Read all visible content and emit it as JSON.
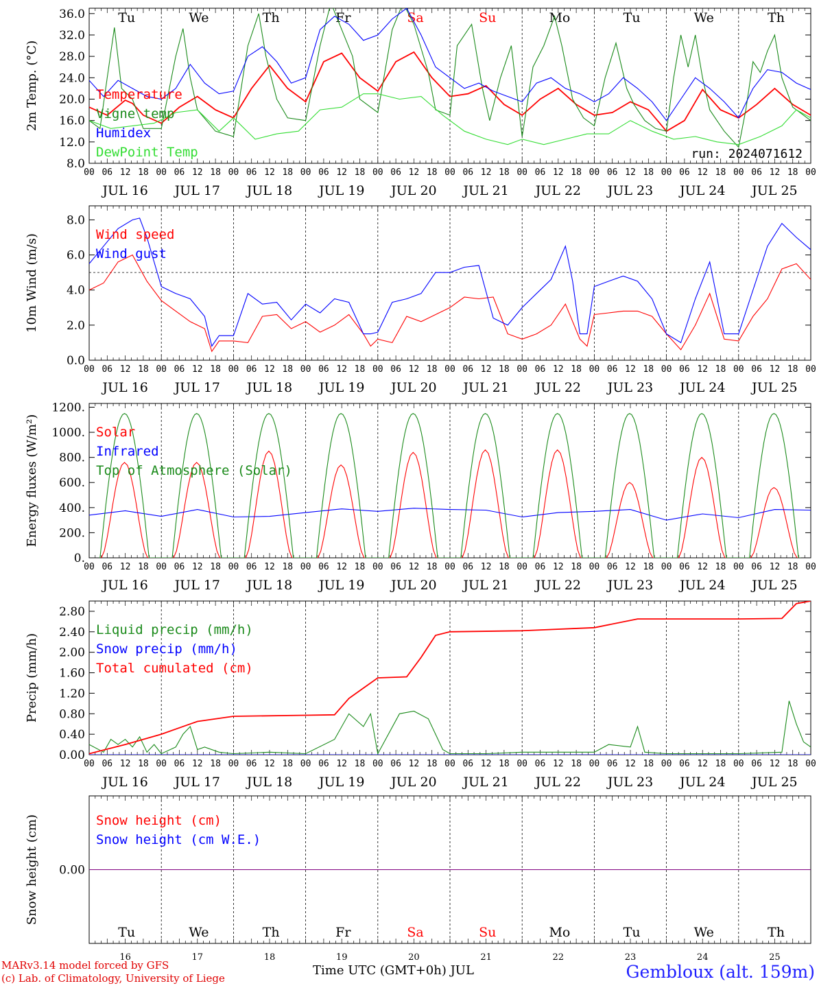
{
  "page": {
    "footer_model": "MARv3.14 model forced by GFS",
    "footer_lab": "(c) Lab. of Climatology, University of Liege",
    "time_label": "Time UTC (GMT+0h) JUL",
    "station": "Gembloux (alt. 159m)"
  },
  "days": [
    "Tu",
    "We",
    "Th",
    "Fr",
    "Sa",
    "Su",
    "Mo",
    "Tu",
    "We",
    "Th"
  ],
  "weekend_days": [
    "Sa",
    "Su"
  ],
  "dates": [
    "JUL 16",
    "JUL 17",
    "JUL 18",
    "JUL 19",
    "JUL 20",
    "JUL 21",
    "JUL 22",
    "JUL 23",
    "JUL 24",
    "JUL 25"
  ],
  "day_numbers": [
    "16",
    "17",
    "18",
    "19",
    "20",
    "21",
    "22",
    "23",
    "24",
    "25"
  ],
  "hour_ticks": [
    "00",
    "06",
    "12",
    "18"
  ],
  "colors": {
    "red": "#ff0000",
    "green": "#1a8a1a",
    "blue": "#0000ff",
    "lightgreen": "#33dd33",
    "purple": "#800080",
    "weekend": "#ff0000"
  },
  "chart_data": [
    {
      "type": "line",
      "ylabel": "2m Temp. (°C)",
      "ylim": [
        8,
        37
      ],
      "yticks": [
        "8.0",
        "12.0",
        "16.0",
        "20.0",
        "24.0",
        "28.0",
        "32.0",
        "36.0"
      ],
      "annotation": "run: 2024071612",
      "x_unit": "days since JUL 16 00 UTC",
      "series": [
        {
          "name": "Temperature",
          "color": "red",
          "x": [
            0,
            0.25,
            0.5,
            0.6,
            0.75,
            1,
            1.25,
            1.5,
            1.75,
            2,
            2.25,
            2.5,
            2.75,
            3,
            3.25,
            3.5,
            3.75,
            4,
            4.25,
            4.5,
            4.75,
            5,
            5.25,
            5.5,
            5.75,
            6,
            6.25,
            6.5,
            6.75,
            7,
            7.25,
            7.5,
            7.75,
            8,
            8.25,
            8.5,
            8.75,
            9,
            9.25,
            9.5,
            9.75,
            10
          ],
          "y": [
            18.5,
            17,
            19.8,
            19.2,
            17,
            15.5,
            18.5,
            20.5,
            18,
            16.5,
            22,
            26.3,
            22,
            19.5,
            27,
            28.6,
            24,
            21.5,
            27,
            28.8,
            24,
            20.5,
            21,
            22.5,
            19,
            17,
            20,
            22,
            19,
            17,
            17.5,
            19.5,
            18,
            14,
            16,
            21.8,
            18,
            16.5,
            19,
            22,
            19,
            17
          ]
        },
        {
          "name": "Vigne temp",
          "color": "green",
          "x": [
            0,
            0.15,
            0.25,
            0.35,
            0.45,
            0.6,
            0.75,
            1,
            1.2,
            1.3,
            1.4,
            1.5,
            1.75,
            2,
            2.2,
            2.35,
            2.45,
            2.6,
            2.75,
            3,
            3.2,
            3.35,
            3.5,
            3.65,
            3.75,
            4,
            4.2,
            4.35,
            4.5,
            4.7,
            4.8,
            5,
            5.1,
            5.3,
            5.45,
            5.55,
            5.7,
            5.85,
            6,
            6.15,
            6.3,
            6.45,
            6.55,
            6.7,
            6.85,
            7,
            7.15,
            7.3,
            7.45,
            7.55,
            7.7,
            7.85,
            8,
            8.1,
            8.2,
            8.3,
            8.4,
            8.5,
            8.6,
            8.7,
            8.8,
            8.9,
            9,
            9.1,
            9.2,
            9.3,
            9.4,
            9.5,
            9.6,
            9.75,
            9.9,
            10
          ],
          "y": [
            16,
            14.5,
            24,
            33.4,
            22,
            20,
            14.5,
            14.5,
            28,
            33.2,
            24,
            18,
            14,
            13,
            30,
            36,
            28,
            20,
            16.5,
            16,
            30,
            38,
            33,
            28,
            20,
            17.5,
            33,
            38,
            34,
            25,
            18,
            17,
            30,
            34,
            22,
            16,
            24,
            30,
            13,
            26,
            30,
            35.5,
            30,
            20,
            16.5,
            15,
            24,
            30.5,
            22,
            19,
            16,
            14.5,
            14,
            24,
            32,
            26,
            32,
            24,
            18,
            16,
            14,
            12.5,
            11,
            18,
            27,
            25,
            29,
            32,
            24,
            18.5,
            17,
            16
          ]
        },
        {
          "name": "Humidex",
          "color": "blue",
          "x": [
            0,
            0.2,
            0.4,
            0.6,
            0.8,
            1,
            1.2,
            1.4,
            1.6,
            1.8,
            2,
            2.2,
            2.4,
            2.6,
            2.8,
            3,
            3.2,
            3.4,
            3.6,
            3.8,
            4,
            4.2,
            4.4,
            4.6,
            4.8,
            5,
            5.2,
            5.4,
            5.6,
            5.8,
            6,
            6.2,
            6.4,
            6.6,
            6.8,
            7,
            7.2,
            7.4,
            7.6,
            7.8,
            8,
            8.2,
            8.4,
            8.6,
            8.8,
            9,
            9.2,
            9.4,
            9.6,
            9.8,
            10
          ],
          "y": [
            23.5,
            20.5,
            23.5,
            22,
            20.5,
            20,
            22,
            26.5,
            23,
            21,
            21.5,
            28,
            29.8,
            27,
            23,
            24,
            33,
            35.5,
            34,
            31,
            32,
            35,
            37,
            32,
            26,
            24,
            22,
            23,
            21.5,
            20.5,
            19.5,
            23,
            24,
            22,
            21,
            19.5,
            21,
            24,
            22,
            19.5,
            16,
            20,
            24,
            22,
            19.5,
            16.5,
            22,
            25.5,
            25,
            23,
            21.8
          ]
        },
        {
          "name": "DewPoint Temp",
          "color": "lightgreen",
          "x": [
            0,
            0.3,
            0.6,
            0.9,
            1.2,
            1.5,
            1.8,
            2,
            2.3,
            2.6,
            2.9,
            3.2,
            3.5,
            3.8,
            4,
            4.3,
            4.6,
            4.9,
            5.2,
            5.5,
            5.8,
            6,
            6.3,
            6.6,
            6.9,
            7.2,
            7.5,
            7.8,
            8.1,
            8.4,
            8.7,
            9,
            9.3,
            9.6,
            9.8,
            10
          ],
          "y": [
            16,
            14.5,
            15,
            15.5,
            17.5,
            18,
            14,
            16.5,
            12.5,
            13.5,
            14,
            18,
            18.5,
            21,
            21,
            20,
            20.5,
            17,
            14,
            12.5,
            11.5,
            12.5,
            11.5,
            12.5,
            13.5,
            13.5,
            16,
            14,
            12.5,
            13,
            12,
            11.5,
            13,
            15,
            18,
            16.5
          ]
        }
      ]
    },
    {
      "type": "line",
      "ylabel": "10m Wind (m/s)",
      "ylim": [
        0,
        8.8
      ],
      "yticks": [
        "0.0",
        "2.0",
        "4.0",
        "6.0",
        "8.0"
      ],
      "reference_line": 5,
      "x_unit": "days since JUL 16 00 UTC",
      "series": [
        {
          "name": "Wind speed",
          "color": "red",
          "x": [
            0,
            0.2,
            0.4,
            0.6,
            0.8,
            1,
            1.2,
            1.4,
            1.6,
            1.7,
            1.8,
            1.9,
            2,
            2.2,
            2.4,
            2.6,
            2.8,
            3,
            3.2,
            3.4,
            3.6,
            3.8,
            3.9,
            4,
            4.2,
            4.4,
            4.6,
            4.8,
            5,
            5.2,
            5.4,
            5.6,
            5.8,
            6,
            6.2,
            6.4,
            6.6,
            6.8,
            6.9,
            7,
            7.2,
            7.4,
            7.6,
            7.8,
            8,
            8.2,
            8.4,
            8.6,
            8.8,
            9,
            9.2,
            9.4,
            9.6,
            9.8,
            10
          ],
          "y": [
            4,
            4.4,
            5.6,
            6,
            4.5,
            3.4,
            2.8,
            2.2,
            1.8,
            0.5,
            1.1,
            1.1,
            1.1,
            1,
            2.5,
            2.6,
            1.8,
            2.2,
            1.6,
            2,
            2.6,
            1.5,
            0.8,
            1.2,
            1,
            2.5,
            2.2,
            2.6,
            3,
            3.6,
            3.5,
            3.6,
            1.5,
            1.2,
            1.5,
            2,
            3.2,
            1.2,
            0.8,
            2.6,
            2.7,
            2.8,
            2.8,
            2.5,
            1.5,
            0.6,
            2,
            3.8,
            1.2,
            1.1,
            2.5,
            3.5,
            5.2,
            5.5,
            4.6
          ]
        },
        {
          "name": "Wind gust",
          "color": "blue",
          "x": [
            0,
            0.2,
            0.4,
            0.6,
            0.7,
            0.8,
            1,
            1.2,
            1.4,
            1.6,
            1.7,
            1.8,
            1.9,
            2,
            2.2,
            2.4,
            2.6,
            2.8,
            3,
            3.2,
            3.4,
            3.6,
            3.8,
            3.9,
            4,
            4.2,
            4.4,
            4.6,
            4.8,
            5,
            5.2,
            5.4,
            5.6,
            5.8,
            6,
            6.2,
            6.4,
            6.6,
            6.7,
            6.8,
            6.9,
            7,
            7.2,
            7.4,
            7.6,
            7.8,
            8,
            8.2,
            8.4,
            8.6,
            8.8,
            9,
            9.2,
            9.4,
            9.6,
            9.8,
            10
          ],
          "y": [
            5.5,
            6.5,
            7.5,
            8,
            8.1,
            7,
            4.2,
            3.8,
            3.5,
            2.5,
            0.8,
            1.4,
            1.4,
            1.4,
            3.8,
            3.2,
            3.3,
            2.3,
            3.2,
            2.7,
            3.5,
            3.3,
            1.5,
            1.5,
            1.6,
            3.3,
            3.5,
            3.8,
            5,
            5,
            5.3,
            5.4,
            2.4,
            2,
            3,
            3.8,
            4.6,
            6.5,
            4.5,
            1.5,
            1.5,
            4.2,
            4.5,
            4.8,
            4.5,
            3.5,
            1.5,
            1,
            3.5,
            5.6,
            1.5,
            1.5,
            4,
            6.5,
            7.8,
            7,
            6.3
          ]
        }
      ]
    },
    {
      "type": "line",
      "ylabel": "Energy fluxes (W/m²)",
      "ylim": [
        0,
        1230
      ],
      "yticks": [
        "0.",
        "200.",
        "400.",
        "600.",
        "800.",
        "1000.",
        "1200."
      ],
      "x_unit": "days since JUL 16 00 UTC",
      "series": [
        {
          "name": "Solar",
          "color": "red",
          "daily_peaks": [
            760,
            760,
            850,
            740,
            840,
            860,
            860,
            600,
            800,
            560
          ]
        },
        {
          "name": "Infrared",
          "color": "blue",
          "x": [
            0,
            0.5,
            1,
            1.5,
            2,
            2.5,
            3,
            3.5,
            4,
            4.5,
            5,
            5.5,
            6,
            6.5,
            7,
            7.5,
            8,
            8.5,
            9,
            9.5,
            10
          ],
          "y": [
            340,
            375,
            330,
            385,
            325,
            330,
            360,
            390,
            370,
            395,
            385,
            380,
            325,
            360,
            370,
            385,
            300,
            350,
            320,
            385,
            380
          ]
        },
        {
          "name": "Top of Atmosphere (Solar)",
          "color": "green",
          "daily_peak": 1150
        }
      ]
    },
    {
      "type": "line",
      "ylabel": "Precip (mm/h)",
      "ylim": [
        0,
        3
      ],
      "yticks": [
        "0.00",
        "0.40",
        "0.80",
        "1.20",
        "1.60",
        "2.00",
        "2.40",
        "2.80"
      ],
      "x_unit": "days since JUL 16 00 UTC",
      "series": [
        {
          "name": "Liquid precip (mm/h)",
          "color": "green",
          "x": [
            0,
            0.2,
            0.3,
            0.4,
            0.5,
            0.6,
            0.7,
            0.8,
            0.9,
            1,
            1.2,
            1.3,
            1.4,
            1.5,
            1.6,
            1.8,
            2,
            2.5,
            3,
            3.4,
            3.6,
            3.8,
            3.9,
            4,
            4.3,
            4.5,
            4.7,
            4.9,
            5,
            5.5,
            6,
            6.5,
            7,
            7.2,
            7.5,
            7.6,
            7.7,
            8,
            9,
            9.6,
            9.7,
            9.8,
            9.9,
            10
          ],
          "y": [
            0.2,
            0.05,
            0.3,
            0.2,
            0.3,
            0.15,
            0.35,
            0.05,
            0.2,
            0.02,
            0.15,
            0.4,
            0.55,
            0.1,
            0.15,
            0.05,
            0.02,
            0.05,
            0.02,
            0.3,
            0.8,
            0.55,
            0.8,
            0.02,
            0.8,
            0.85,
            0.7,
            0.1,
            0.02,
            0.02,
            0.05,
            0.05,
            0.05,
            0.2,
            0.15,
            0.55,
            0.05,
            0.02,
            0.02,
            0.05,
            1.05,
            0.6,
            0.25,
            0.15
          ]
        },
        {
          "name": "Snow precip (mm/h)",
          "color": "blue",
          "x": [
            0,
            10
          ],
          "y": [
            0,
            0
          ]
        },
        {
          "name": "Total cumulated (cm)",
          "color": "red",
          "x": [
            0,
            0.5,
            1,
            1.4,
            1.5,
            2,
            3,
            3.4,
            3.6,
            3.8,
            4,
            4.4,
            4.6,
            4.8,
            5,
            6,
            7,
            7.6,
            8,
            9,
            9.6,
            9.8,
            10
          ],
          "y": [
            0.02,
            0.2,
            0.4,
            0.6,
            0.65,
            0.75,
            0.77,
            0.78,
            1.1,
            1.3,
            1.5,
            1.52,
            1.9,
            2.33,
            2.4,
            2.42,
            2.48,
            2.65,
            2.65,
            2.65,
            2.66,
            2.95,
            3.0
          ]
        }
      ]
    },
    {
      "type": "line",
      "ylabel": "Snow height (cm)",
      "ylim": [
        -1,
        1
      ],
      "yticks": [
        "0.00"
      ],
      "x_unit": "days since JUL 16 00 UTC",
      "series": [
        {
          "name": "Snow height (cm)",
          "color": "red",
          "x": [
            0,
            10
          ],
          "y": [
            0,
            0
          ]
        },
        {
          "name": "Snow height (cm W.E.)",
          "color": "blue",
          "x": [
            0,
            10
          ],
          "y": [
            0,
            0
          ]
        }
      ]
    }
  ]
}
